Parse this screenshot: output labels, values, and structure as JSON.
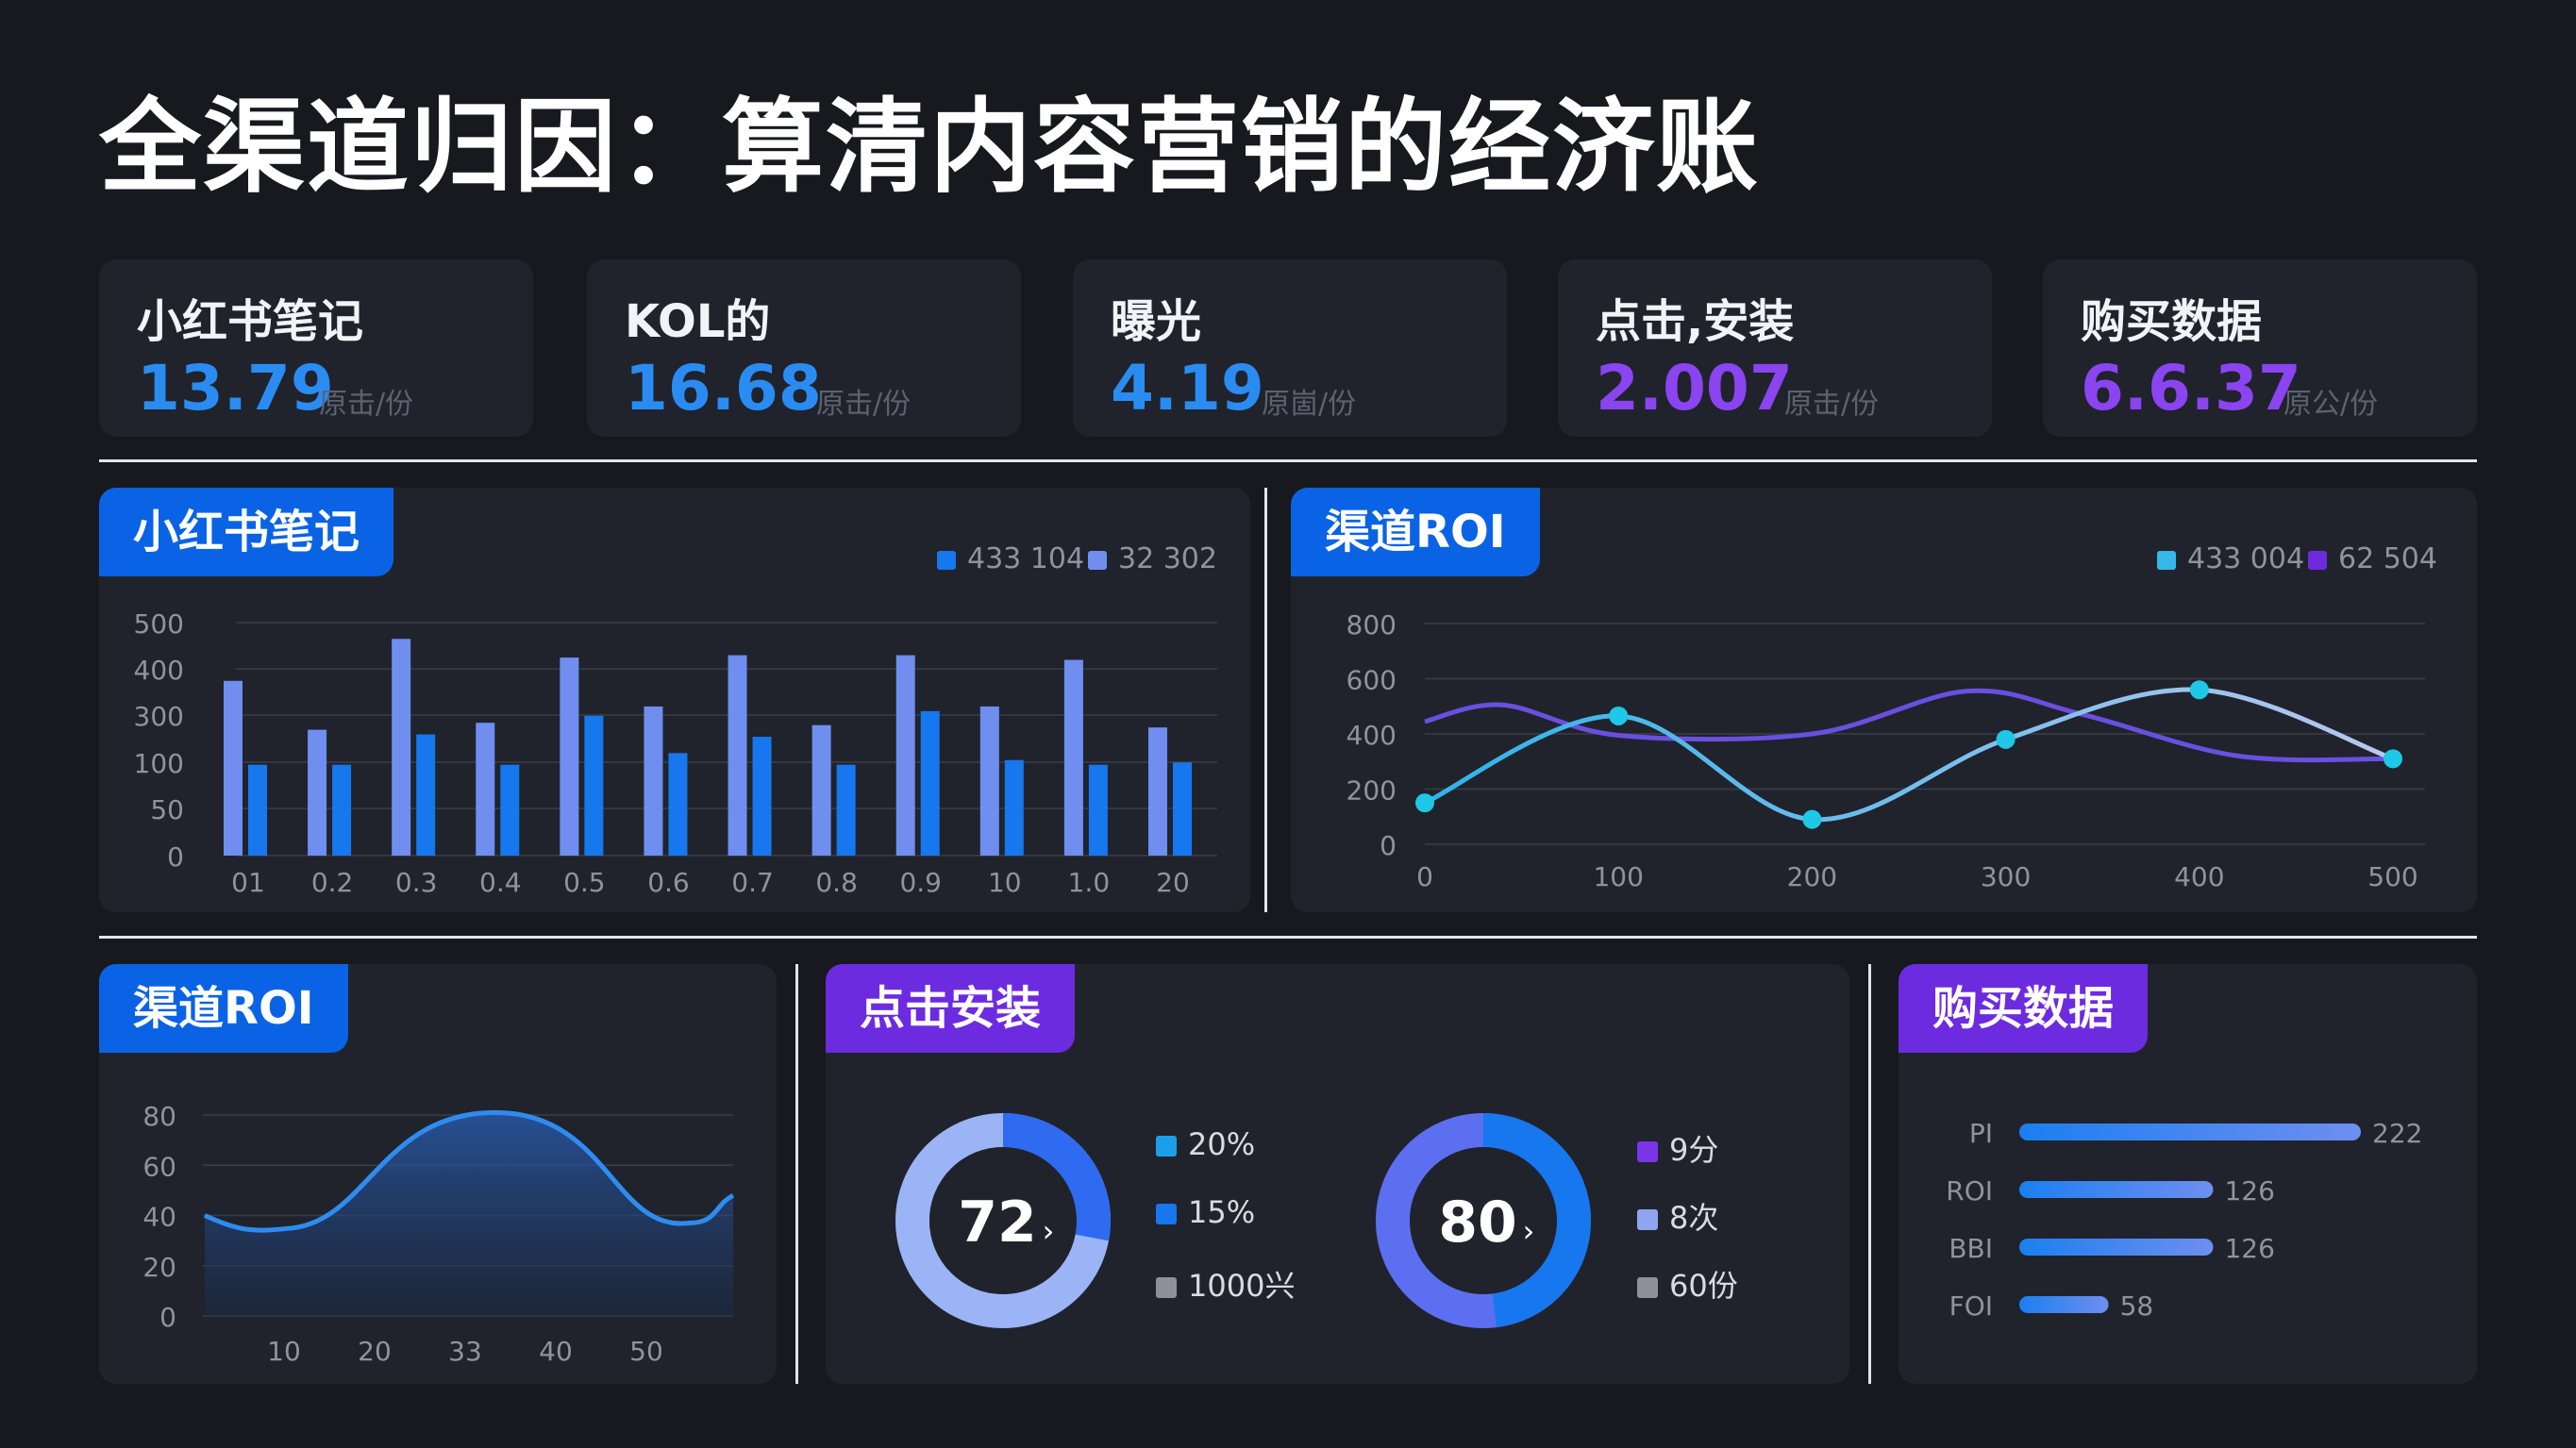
{
  "title": "全渠道归因：算清内容营销的经济账",
  "kpis": [
    {
      "name": "小红书笔记",
      "value": "13.79",
      "unit": "原击/份",
      "color": "#2a8cf2"
    },
    {
      "name": "KOL的",
      "value": "16.68",
      "unit": "原击/份",
      "color": "#2a8cf2"
    },
    {
      "name": "曝光",
      "value": "4.19",
      "unit": "原崮/份",
      "color": "#2a8cf2"
    },
    {
      "name": "点击,安装",
      "value": "2.007",
      "unit": "原击/份",
      "color": "#8a44f0"
    },
    {
      "name": "购买数据",
      "value": "6.6.37",
      "unit": "原公/份",
      "color": "#8a44f0"
    }
  ],
  "panels": {
    "bar": {
      "tag": "小红书笔记"
    },
    "line": {
      "tag": "渠道ROI"
    },
    "area": {
      "tag": "渠道ROI"
    },
    "donut": {
      "tag": "点击安装"
    },
    "hbar": {
      "tag": "购买数据"
    }
  },
  "colors": {
    "blue": "#1677ee",
    "periwinkle": "#6f8ef0",
    "cyan": "#35b7ea",
    "violet": "#6a4fe0",
    "purple": "#6d2be0"
  },
  "chart_data": [
    {
      "type": "bar",
      "title": "小红书笔记",
      "categories": [
        "01",
        "0.2",
        "0.3",
        "0.4",
        "0.5",
        "0.6",
        "0.7",
        "0.8",
        "0.9",
        "10",
        "1.0",
        "20"
      ],
      "yticks": [
        "0",
        "50",
        "100",
        "300",
        "400",
        "500"
      ],
      "series": [
        {
          "name": "433 104",
          "color": "#6f8ef0",
          "values": [
            375,
            270,
            465,
            285,
            425,
            320,
            430,
            280,
            430,
            320,
            420,
            275
          ]
        },
        {
          "name": "32 302",
          "color": "#1677ee",
          "values": [
            195,
            195,
            260,
            195,
            300,
            220,
            255,
            195,
            310,
            205,
            195,
            200
          ]
        }
      ],
      "ylim": [
        0,
        500
      ],
      "grid": true,
      "legend": "top-right"
    },
    {
      "type": "line",
      "title": "渠道ROI",
      "x_ticks": [
        0,
        100,
        200,
        300,
        400,
        500
      ],
      "y_ticks": [
        0,
        200,
        400,
        600,
        800
      ],
      "series": [
        {
          "name": "433 004",
          "color": "#3ab8e8",
          "x": [
            0,
            100,
            200,
            300,
            400,
            500
          ],
          "y": [
            150,
            465,
            90,
            380,
            560,
            310
          ]
        },
        {
          "name": "62 504",
          "color": "#6a4fe0",
          "x": [
            0,
            40,
            100,
            200,
            280,
            340,
            420,
            500
          ],
          "y": [
            445,
            505,
            395,
            400,
            555,
            470,
            320,
            310
          ]
        }
      ],
      "xlim": [
        0,
        500
      ],
      "ylim": [
        0,
        800
      ],
      "grid": true,
      "legend": "top-right"
    },
    {
      "type": "area",
      "title": "渠道ROI",
      "x_ticks": [
        "10",
        "20",
        "33",
        "40",
        "50"
      ],
      "y_ticks": [
        0,
        20,
        40,
        60,
        80
      ],
      "series": [
        {
          "name": "",
          "color": "#2e8cf0",
          "x": [
            0,
            10,
            33,
            55,
            60
          ],
          "y": [
            40,
            35,
            81,
            37,
            48
          ]
        }
      ],
      "ylim": [
        0,
        80
      ],
      "grid": true
    },
    {
      "type": "pie",
      "title": "点击安装",
      "donuts": [
        {
          "center_label": "72",
          "suffix": "›",
          "value": 72,
          "color_fill": "#9bb4f5",
          "color_accent": "#2f6bf0",
          "legend": [
            {
              "label": "20%",
              "color": "#1aa0ea"
            },
            {
              "label": "15%",
              "color": "#1677ee"
            },
            {
              "label": "1000兴",
              "color": "#8e919a"
            }
          ]
        },
        {
          "center_label": "80",
          "suffix": "›",
          "value": 80,
          "color_fill": "#5c6ff0",
          "color_accent": "#1677ee",
          "legend": [
            {
              "label": "9分",
              "color": "#7a35e8"
            },
            {
              "label": "8次",
              "color": "#8fa5f0"
            },
            {
              "label": "60份",
              "color": "#8e919a"
            }
          ]
        }
      ]
    },
    {
      "type": "bar",
      "title": "购买数据",
      "orientation": "horizontal",
      "categories": [
        "PI",
        "ROI",
        "BBI",
        "FOI"
      ],
      "values": [
        222,
        126,
        126,
        58
      ],
      "value_labels": [
        "222",
        "126",
        "126",
        "58"
      ],
      "xlim": [
        0,
        222
      ]
    }
  ]
}
